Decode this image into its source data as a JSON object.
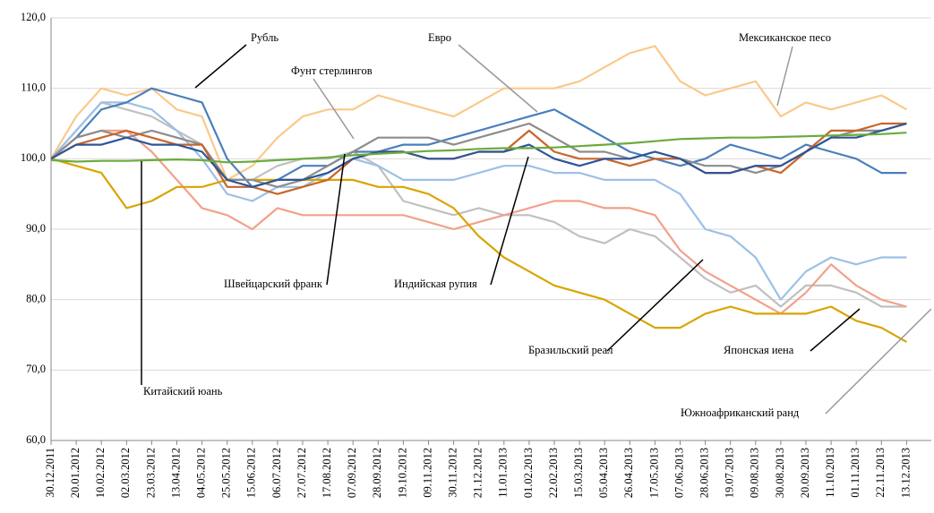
{
  "chart_data": {
    "type": "line",
    "categories": [
      "30.12.2011",
      "20.01.2012",
      "10.02.2012",
      "02.03.2012",
      "23.03.2012",
      "13.04.2012",
      "04.05.2012",
      "25.05.2012",
      "15.06.2012",
      "06.07.2012",
      "27.07.2012",
      "17.08.2012",
      "07.09.2012",
      "28.09.2012",
      "19.10.2012",
      "09.11.2012",
      "30.11.2012",
      "21.12.2012",
      "11.01.2013",
      "01.02.2013",
      "22.02.2013",
      "15.03.2013",
      "05.04.2013",
      "26.04.2013",
      "17.05.2013",
      "07.06.2013",
      "28.06.2013",
      "19.07.2013",
      "09.08.2013",
      "30.08.2013",
      "20.09.2013",
      "11.10.2013",
      "01.11.2013",
      "22.11.2013",
      "13.12.2013"
    ],
    "ylim": [
      60,
      120
    ],
    "yticks": [
      {
        "value": 60,
        "label": "60,0"
      },
      {
        "value": 70,
        "label": "70,0"
      },
      {
        "value": 80,
        "label": "80,0"
      },
      {
        "value": 90,
        "label": "90,0"
      },
      {
        "value": 100,
        "label": "100,0"
      },
      {
        "value": 110,
        "label": "110,0"
      },
      {
        "value": 120,
        "label": "120,0"
      }
    ],
    "grid": true,
    "series": [
      {
        "name": "Мексиканское песо",
        "color": "#fac98a",
        "values": [
          100,
          106,
          110,
          109,
          110,
          107,
          106,
          97,
          99,
          103,
          106,
          107,
          107,
          109,
          108,
          107,
          106,
          108,
          110,
          110,
          110,
          111,
          113,
          115,
          116,
          111,
          109,
          110,
          111,
          106,
          108,
          107,
          108,
          109,
          107
        ]
      },
      {
        "name": "Южноафриканский ранд",
        "color": "#c0c0c0",
        "values": [
          100,
          104,
          108,
          107,
          106,
          104,
          102,
          97,
          97,
          99,
          100,
          100,
          101,
          99,
          94,
          93,
          92,
          93,
          92,
          92,
          91,
          89,
          88,
          90,
          89,
          86,
          83,
          81,
          82,
          79,
          82,
          82,
          81,
          79,
          79
        ]
      },
      {
        "name": "Бразильский реал",
        "color": "#f2a18a",
        "values": [
          100,
          103,
          104,
          104,
          101,
          97,
          93,
          92,
          90,
          93,
          92,
          92,
          92,
          92,
          92,
          91,
          90,
          91,
          92,
          93,
          94,
          94,
          93,
          93,
          92,
          87,
          84,
          82,
          80,
          78,
          81,
          85,
          82,
          80,
          79
        ]
      },
      {
        "name": "Индийская рупия",
        "color": "#9dc0e6",
        "values": [
          100,
          104,
          108,
          108,
          107,
          104,
          100,
          95,
          94,
          96,
          96,
          98,
          100,
          99,
          97,
          97,
          97,
          98,
          99,
          99,
          98,
          98,
          97,
          97,
          97,
          95,
          90,
          89,
          86,
          80,
          84,
          86,
          85,
          86,
          86
        ]
      },
      {
        "name": "Японская иена",
        "color": "#d9a400",
        "values": [
          100,
          99,
          98,
          93,
          94,
          96,
          96,
          97,
          97,
          97,
          97,
          97,
          97,
          96,
          96,
          95,
          93,
          89,
          86,
          84,
          82,
          81,
          80,
          78,
          76,
          76,
          78,
          79,
          78,
          78,
          78,
          79,
          77,
          76,
          74
        ]
      },
      {
        "name": "Рубль",
        "color": "#4a7ebb",
        "values": [
          100,
          103,
          107,
          108,
          110,
          109,
          108,
          100,
          96,
          97,
          99,
          99,
          101,
          101,
          102,
          102,
          103,
          104,
          105,
          106,
          107,
          105,
          103,
          101,
          100,
          99,
          100,
          102,
          101,
          100,
          102,
          101,
          100,
          98,
          98
        ]
      },
      {
        "name": "Евро",
        "color": "#8c8c8c",
        "values": [
          100,
          103,
          104,
          103,
          104,
          103,
          102,
          97,
          97,
          96,
          97,
          99,
          101,
          103,
          103,
          103,
          102,
          103,
          104,
          105,
          103,
          101,
          101,
          100,
          101,
          100,
          99,
          99,
          98,
          99,
          101,
          103,
          104,
          104,
          105
        ]
      },
      {
        "name": "Швейцарский франк",
        "color": "#c8652a",
        "values": [
          100,
          102,
          103,
          104,
          103,
          102,
          102,
          96,
          96,
          95,
          96,
          97,
          100,
          101,
          101,
          100,
          100,
          101,
          101,
          104,
          101,
          100,
          100,
          99,
          100,
          100,
          98,
          98,
          99,
          98,
          101,
          104,
          104,
          105,
          105
        ]
      },
      {
        "name": "Фунт стерлингов",
        "color": "#2e5597",
        "values": [
          100,
          102,
          102,
          103,
          102,
          102,
          101,
          97,
          96,
          97,
          97,
          98,
          100,
          101,
          101,
          100,
          100,
          101,
          101,
          102,
          100,
          99,
          100,
          100,
          101,
          100,
          98,
          98,
          99,
          99,
          101,
          103,
          103,
          104,
          105
        ]
      },
      {
        "name": "Китайский юань",
        "color": "#6aab3d",
        "values": [
          99.8,
          99.6,
          99.7,
          99.7,
          99.8,
          99.9,
          99.8,
          99.5,
          99.6,
          99.8,
          100.0,
          100.2,
          100.5,
          100.7,
          100.9,
          101.1,
          101.2,
          101.4,
          101.5,
          101.5,
          101.6,
          101.8,
          102.0,
          102.2,
          102.5,
          102.8,
          102.9,
          103.0,
          103.0,
          103.1,
          103.2,
          103.3,
          103.4,
          103.5,
          103.7
        ]
      }
    ]
  }
}
